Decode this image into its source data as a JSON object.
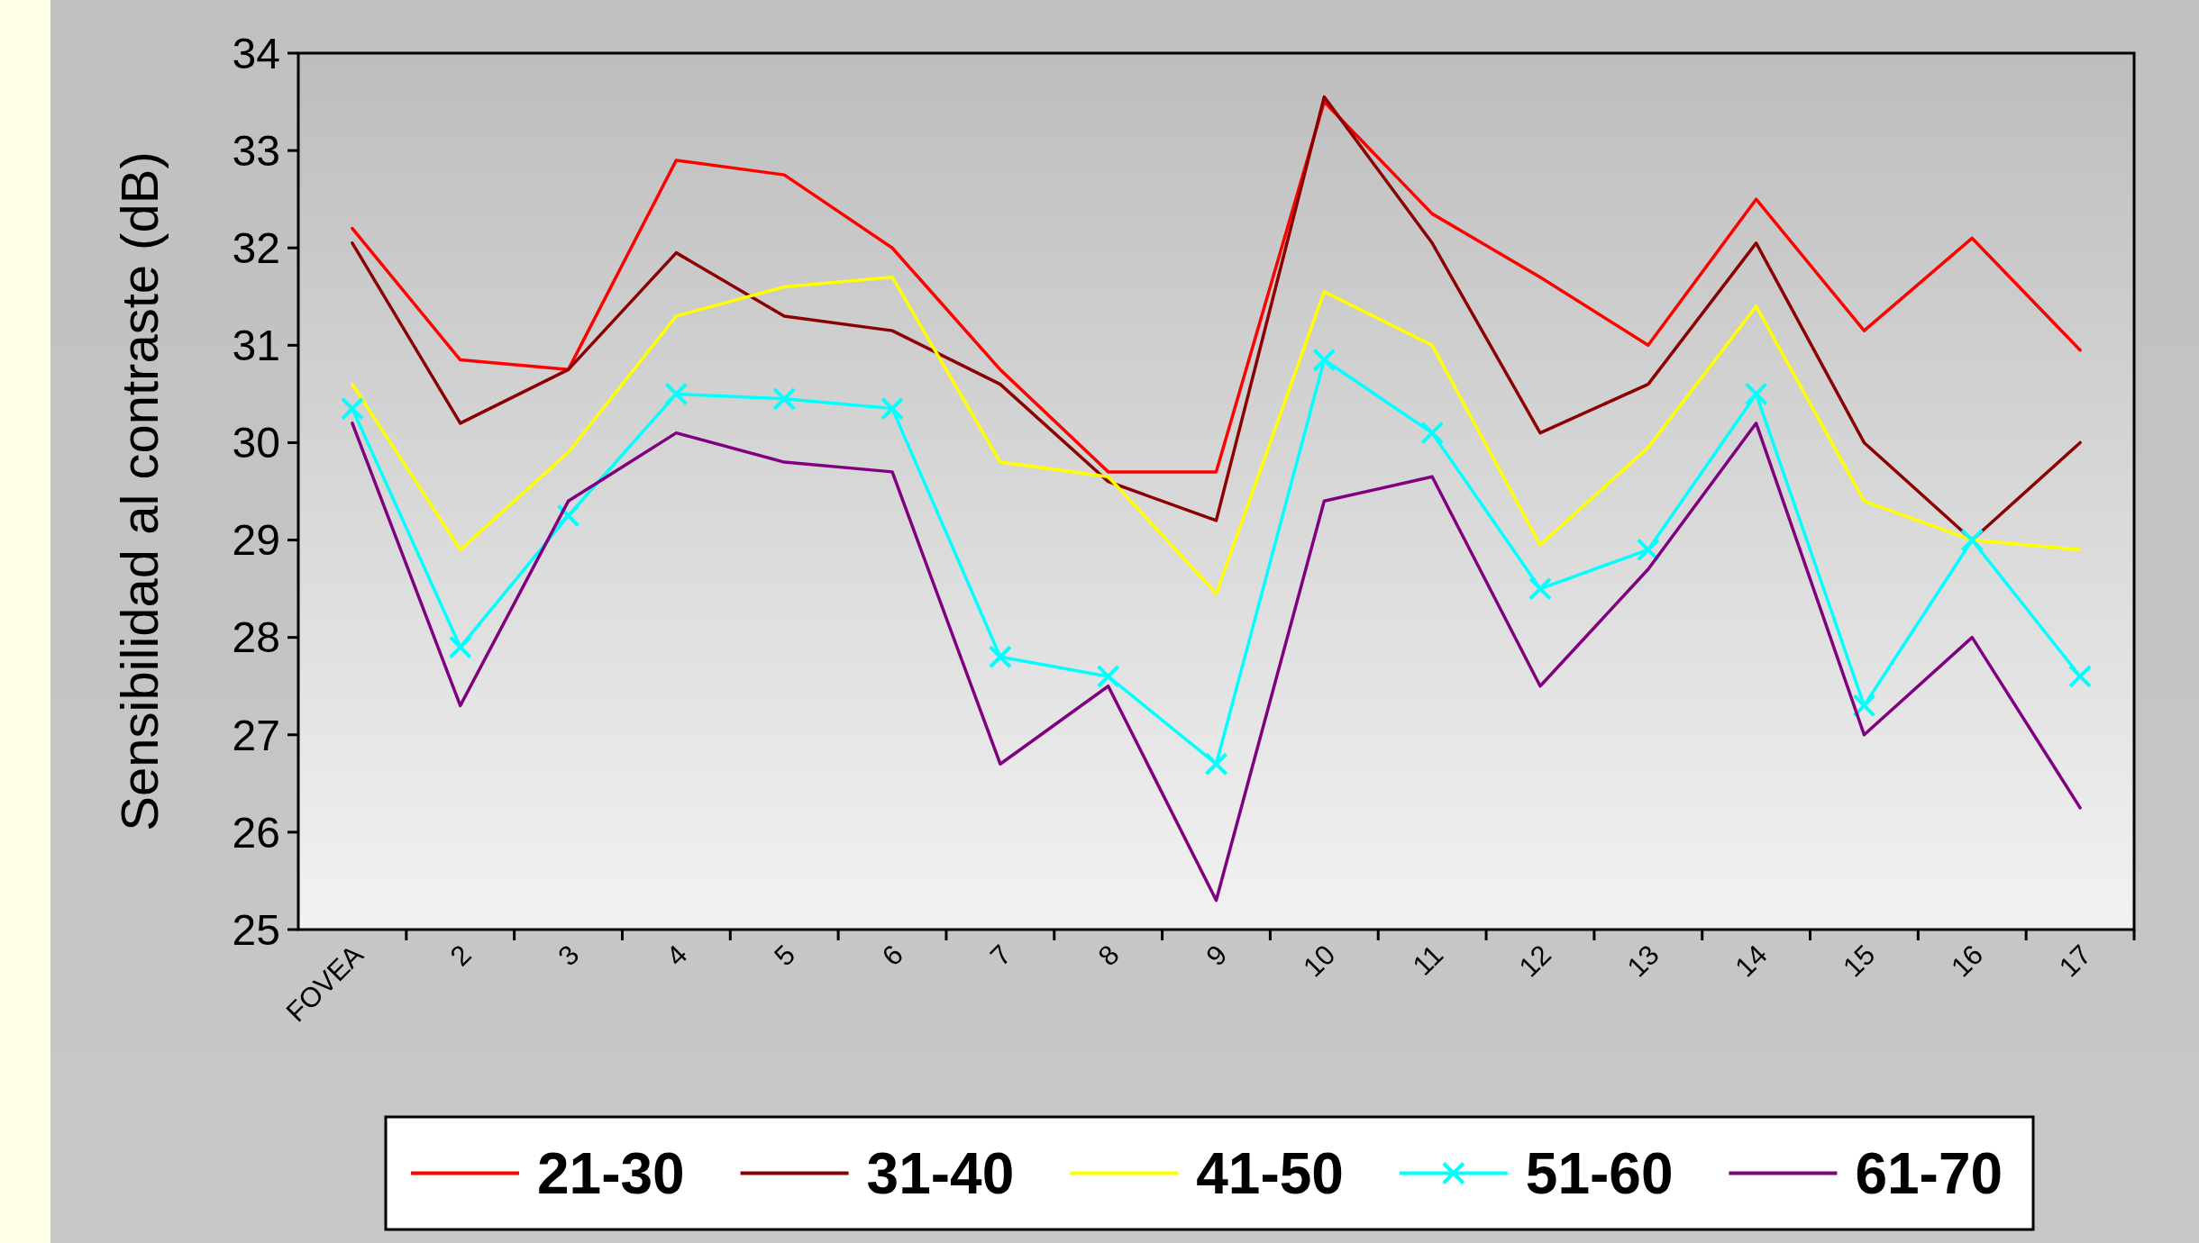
{
  "chart_data": {
    "type": "line",
    "ylabel": "Sensibilidad al contraste (dB)",
    "categories": [
      "FOVEA",
      "2",
      "3",
      "4",
      "5",
      "6",
      "7",
      "8",
      "9",
      "10",
      "11",
      "12",
      "13",
      "14",
      "15",
      "16",
      "17"
    ],
    "ylim": [
      25,
      34
    ],
    "yticks": [
      25,
      26,
      27,
      28,
      29,
      30,
      31,
      32,
      33,
      34
    ],
    "grid": false,
    "legend": "bottom",
    "marker": "none",
    "line_style": "solid",
    "series": [
      {
        "name": "21-30",
        "color": "#ff0000",
        "values": [
          32.2,
          30.85,
          30.75,
          32.9,
          32.75,
          32.0,
          30.75,
          29.7,
          29.7,
          33.5,
          32.35,
          31.7,
          31.0,
          32.5,
          31.15,
          32.1,
          30.95
        ]
      },
      {
        "name": "31-40",
        "color": "#8b0000",
        "values": [
          32.05,
          30.2,
          30.75,
          31.95,
          31.3,
          31.15,
          30.6,
          29.6,
          29.2,
          33.55,
          32.05,
          30.1,
          30.6,
          32.05,
          30.0,
          29.0,
          30.0
        ]
      },
      {
        "name": "41-50",
        "color": "#ffff00",
        "values": [
          30.6,
          28.9,
          29.9,
          31.3,
          31.6,
          31.7,
          29.8,
          29.65,
          28.45,
          31.55,
          31.0,
          28.95,
          29.95,
          31.4,
          29.4,
          29.0,
          28.9
        ]
      },
      {
        "name": "51-60",
        "color": "#00ffff",
        "marker": "cross",
        "values": [
          30.35,
          27.9,
          29.25,
          30.5,
          30.45,
          30.35,
          27.8,
          27.6,
          26.7,
          30.85,
          30.1,
          28.5,
          28.9,
          30.5,
          27.3,
          29.0,
          27.6
        ]
      },
      {
        "name": "61-70",
        "color": "#800080",
        "values": [
          30.2,
          27.3,
          29.4,
          30.1,
          29.8,
          29.7,
          26.7,
          27.5,
          25.3,
          29.4,
          29.65,
          27.5,
          28.7,
          30.2,
          27.0,
          28.0,
          26.25
        ]
      }
    ]
  }
}
